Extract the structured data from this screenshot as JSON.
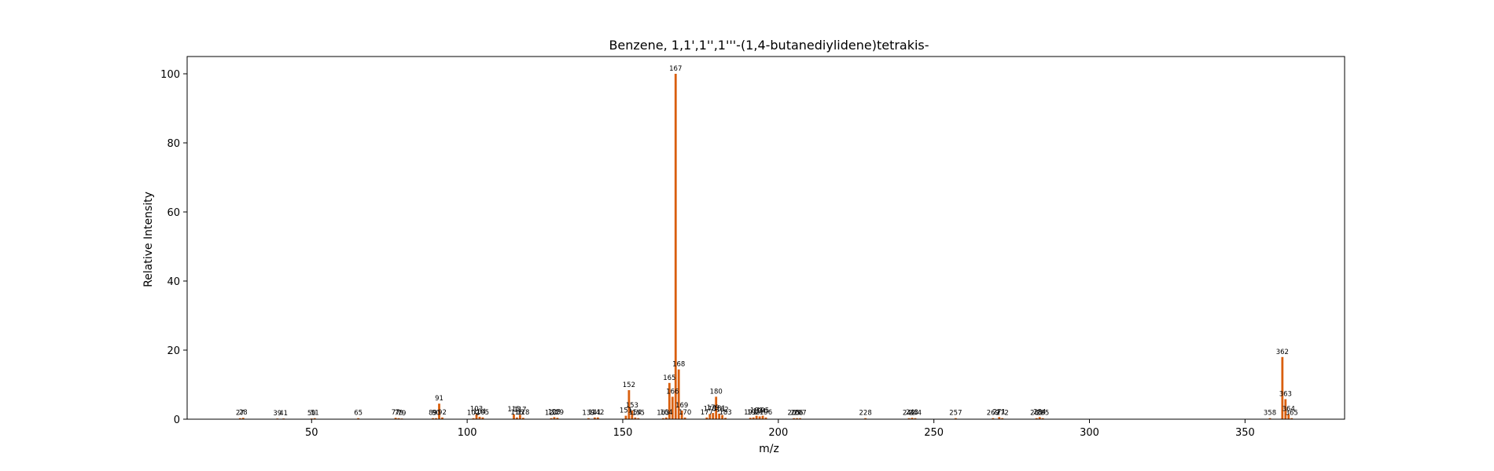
{
  "chart_data": {
    "type": "bar",
    "title": "Benzene, 1,1',1'',1'''-(1,4-butanediylidene)tetrakis-",
    "xlabel": "m/z",
    "ylabel": "Relative Intensity",
    "xlim": [
      10,
      382
    ],
    "ylim": [
      0,
      105
    ],
    "x_ticks": [
      50,
      100,
      150,
      200,
      250,
      300,
      350
    ],
    "y_ticks": [
      0,
      20,
      40,
      60,
      80,
      100
    ],
    "grid": false,
    "legend": "none",
    "bar_color": "#d95f0e",
    "peaks": [
      {
        "mz": 27,
        "intensity": 0.3,
        "label": "27"
      },
      {
        "mz": 28,
        "intensity": 0.4,
        "label": "28"
      },
      {
        "mz": 39,
        "intensity": 0.2,
        "label": "39"
      },
      {
        "mz": 41,
        "intensity": 0.2,
        "label": "41"
      },
      {
        "mz": 50,
        "intensity": 0.2,
        "label": "50"
      },
      {
        "mz": 51,
        "intensity": 0.3,
        "label": "51"
      },
      {
        "mz": 65,
        "intensity": 0.3,
        "label": "65"
      },
      {
        "mz": 77,
        "intensity": 0.4,
        "label": "77"
      },
      {
        "mz": 78,
        "intensity": 0.3,
        "label": "78"
      },
      {
        "mz": 79,
        "intensity": 0.2,
        "label": "79"
      },
      {
        "mz": 89,
        "intensity": 0.3,
        "label": "89"
      },
      {
        "mz": 90,
        "intensity": 0.3,
        "label": "90"
      },
      {
        "mz": 91,
        "intensity": 4.5,
        "label": "91"
      },
      {
        "mz": 92,
        "intensity": 0.5,
        "label": "92"
      },
      {
        "mz": 102,
        "intensity": 0.3,
        "label": "102"
      },
      {
        "mz": 103,
        "intensity": 1.5,
        "label": "103"
      },
      {
        "mz": 104,
        "intensity": 0.7,
        "label": "104"
      },
      {
        "mz": 105,
        "intensity": 0.5,
        "label": "105"
      },
      {
        "mz": 115,
        "intensity": 1.4,
        "label": "115"
      },
      {
        "mz": 116,
        "intensity": 0.5,
        "label": "116"
      },
      {
        "mz": 117,
        "intensity": 1.3,
        "label": "117"
      },
      {
        "mz": 118,
        "intensity": 0.4,
        "label": "118"
      },
      {
        "mz": 127,
        "intensity": 0.3,
        "label": "127"
      },
      {
        "mz": 128,
        "intensity": 0.6,
        "label": "128"
      },
      {
        "mz": 129,
        "intensity": 0.4,
        "label": "129"
      },
      {
        "mz": 139,
        "intensity": 0.3,
        "label": "139"
      },
      {
        "mz": 141,
        "intensity": 0.5,
        "label": "141"
      },
      {
        "mz": 142,
        "intensity": 0.5,
        "label": "142"
      },
      {
        "mz": 151,
        "intensity": 1.0,
        "label": "151"
      },
      {
        "mz": 152,
        "intensity": 8.4,
        "label": "152"
      },
      {
        "mz": 153,
        "intensity": 2.5,
        "label": "153"
      },
      {
        "mz": 154,
        "intensity": 0.5,
        "label": "154"
      },
      {
        "mz": 155,
        "intensity": 0.3,
        "label": "155"
      },
      {
        "mz": 163,
        "intensity": 0.3,
        "label": "163"
      },
      {
        "mz": 164,
        "intensity": 0.5,
        "label": "164"
      },
      {
        "mz": 165,
        "intensity": 10.5,
        "label": "165"
      },
      {
        "mz": 166,
        "intensity": 6.5,
        "label": "166"
      },
      {
        "mz": 167,
        "intensity": 100.0,
        "label": "167"
      },
      {
        "mz": 168,
        "intensity": 14.4,
        "label": "168"
      },
      {
        "mz": 169,
        "intensity": 2.5,
        "label": "169"
      },
      {
        "mz": 170,
        "intensity": 0.5,
        "label": "170"
      },
      {
        "mz": 177,
        "intensity": 0.5,
        "label": "177"
      },
      {
        "mz": 178,
        "intensity": 1.5,
        "label": "178"
      },
      {
        "mz": 179,
        "intensity": 1.8,
        "label": "179"
      },
      {
        "mz": 180,
        "intensity": 6.5,
        "label": "180"
      },
      {
        "mz": 181,
        "intensity": 1.6,
        "label": "181"
      },
      {
        "mz": 182,
        "intensity": 1.2,
        "label": "182"
      },
      {
        "mz": 183,
        "intensity": 0.4,
        "label": "183"
      },
      {
        "mz": 191,
        "intensity": 0.4,
        "label": "191"
      },
      {
        "mz": 192,
        "intensity": 0.5,
        "label": "192"
      },
      {
        "mz": 193,
        "intensity": 1.0,
        "label": "193"
      },
      {
        "mz": 194,
        "intensity": 0.8,
        "label": "194"
      },
      {
        "mz": 195,
        "intensity": 1.0,
        "label": "195"
      },
      {
        "mz": 196,
        "intensity": 0.5,
        "label": "196"
      },
      {
        "mz": 205,
        "intensity": 0.3,
        "label": "205"
      },
      {
        "mz": 206,
        "intensity": 0.3,
        "label": "206"
      },
      {
        "mz": 207,
        "intensity": 0.3,
        "label": "207"
      },
      {
        "mz": 228,
        "intensity": 0.3,
        "label": "228"
      },
      {
        "mz": 242,
        "intensity": 0.3,
        "label": "242"
      },
      {
        "mz": 243,
        "intensity": 0.4,
        "label": "243"
      },
      {
        "mz": 244,
        "intensity": 0.3,
        "label": "244"
      },
      {
        "mz": 257,
        "intensity": 0.3,
        "label": "257"
      },
      {
        "mz": 269,
        "intensity": 0.3,
        "label": "269"
      },
      {
        "mz": 271,
        "intensity": 0.6,
        "label": "271"
      },
      {
        "mz": 272,
        "intensity": 0.3,
        "label": "272"
      },
      {
        "mz": 283,
        "intensity": 0.3,
        "label": "283"
      },
      {
        "mz": 284,
        "intensity": 0.6,
        "label": "284"
      },
      {
        "mz": 285,
        "intensity": 0.3,
        "label": "285"
      },
      {
        "mz": 358,
        "intensity": 0.3,
        "label": "358"
      },
      {
        "mz": 362,
        "intensity": 18.0,
        "label": "362"
      },
      {
        "mz": 363,
        "intensity": 5.8,
        "label": "363"
      },
      {
        "mz": 364,
        "intensity": 1.5,
        "label": "364"
      },
      {
        "mz": 365,
        "intensity": 0.3,
        "label": "365"
      }
    ]
  }
}
